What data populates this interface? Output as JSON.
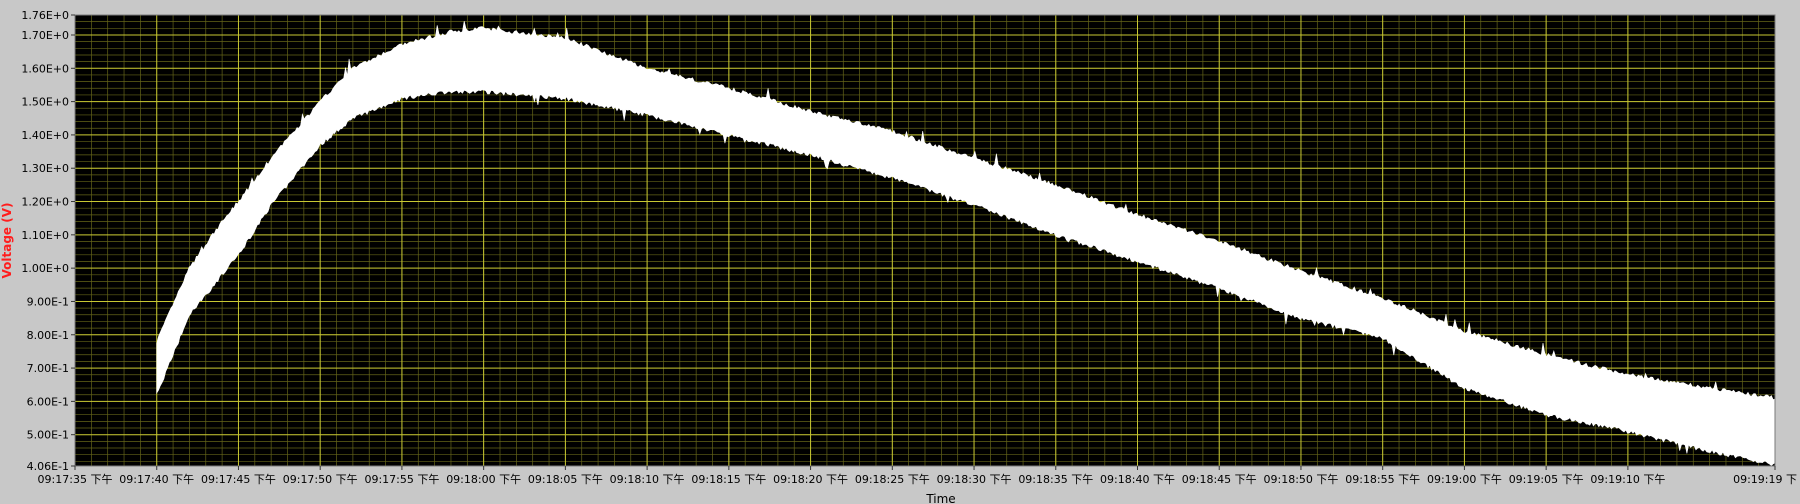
{
  "chart_data": {
    "type": "area",
    "title": "",
    "xlabel": "Time",
    "ylabel": "Voltage (V)",
    "ylabel_color": "#ff1e1e",
    "plot_bg": "#000000",
    "grid_major_color": "#c8c832",
    "grid_minor_color": "#646419",
    "trace_color": "#ffffff",
    "frame_bg": "#c8c8c8",
    "grid": true,
    "xlim": [
      "09:17:35",
      "09:19:19"
    ],
    "ylim": [
      0.406,
      1.76
    ],
    "y_ticks": [
      {
        "value": 0.406,
        "label": "4.06E-1"
      },
      {
        "value": 0.5,
        "label": "5.00E-1"
      },
      {
        "value": 0.6,
        "label": "6.00E-1"
      },
      {
        "value": 0.7,
        "label": "7.00E-1"
      },
      {
        "value": 0.8,
        "label": "8.00E-1"
      },
      {
        "value": 0.9,
        "label": "9.00E-1"
      },
      {
        "value": 1.0,
        "label": "1.00E+0"
      },
      {
        "value": 1.1,
        "label": "1.10E+0"
      },
      {
        "value": 1.2,
        "label": "1.20E+0"
      },
      {
        "value": 1.3,
        "label": "1.30E+0"
      },
      {
        "value": 1.4,
        "label": "1.40E+0"
      },
      {
        "value": 1.5,
        "label": "1.50E+0"
      },
      {
        "value": 1.6,
        "label": "1.60E+0"
      },
      {
        "value": 1.7,
        "label": "1.70E+0"
      },
      {
        "value": 1.76,
        "label": "1.76E+0"
      }
    ],
    "x_ticks": [
      {
        "value": "09:17:35",
        "label": "09:17:35 下午"
      },
      {
        "value": "09:17:40",
        "label": "09:17:40 下午"
      },
      {
        "value": "09:17:45",
        "label": "09:17:45 下午"
      },
      {
        "value": "09:17:50",
        "label": "09:17:50 下午"
      },
      {
        "value": "09:17:55",
        "label": "09:17:55 下午"
      },
      {
        "value": "09:18:00",
        "label": "09:18:00 下午"
      },
      {
        "value": "09:18:05",
        "label": "09:18:05 下午"
      },
      {
        "value": "09:18:10",
        "label": "09:18:10 下午"
      },
      {
        "value": "09:18:15",
        "label": "09:18:15 下午"
      },
      {
        "value": "09:18:20",
        "label": "09:18:20 下午"
      },
      {
        "value": "09:18:25",
        "label": "09:18:25 下午"
      },
      {
        "value": "09:18:30",
        "label": "09:18:30 下午"
      },
      {
        "value": "09:18:35",
        "label": "09:18:35 下午"
      },
      {
        "value": "09:18:40",
        "label": "09:18:40 下午"
      },
      {
        "value": "09:18:45",
        "label": "09:18:45 下午"
      },
      {
        "value": "09:18:50",
        "label": "09:18:50 下午"
      },
      {
        "value": "09:18:55",
        "label": "09:18:55 下午"
      },
      {
        "value": "09:19:00",
        "label": "09:19:00 下午"
      },
      {
        "value": "09:19:05",
        "label": "09:19:05 下午"
      },
      {
        "value": "09:19:10",
        "label": "09:19:10 下午"
      },
      {
        "value": "09:19:19",
        "label": "09:19:19 下"
      }
    ],
    "series": [
      {
        "name": "",
        "x": [
          "09:17:40",
          "09:17:42",
          "09:17:44",
          "09:17:45",
          "09:17:47",
          "09:17:50",
          "09:17:52",
          "09:17:55",
          "09:17:58",
          "09:18:00",
          "09:18:05",
          "09:18:10",
          "09:18:15",
          "09:18:20",
          "09:18:25",
          "09:18:30",
          "09:18:35",
          "09:18:40",
          "09:18:45",
          "09:18:50",
          "09:18:55",
          "09:19:00",
          "09:19:05",
          "09:19:10",
          "09:19:15",
          "09:19:19"
        ],
        "upper": [
          0.78,
          1.0,
          1.14,
          1.2,
          1.33,
          1.5,
          1.6,
          1.67,
          1.71,
          1.72,
          1.69,
          1.6,
          1.54,
          1.47,
          1.41,
          1.33,
          1.25,
          1.16,
          1.08,
          0.99,
          0.91,
          0.81,
          0.74,
          0.68,
          0.64,
          0.61
        ],
        "lower": [
          0.62,
          0.86,
          0.98,
          1.04,
          1.19,
          1.37,
          1.45,
          1.51,
          1.53,
          1.53,
          1.51,
          1.46,
          1.4,
          1.34,
          1.27,
          1.19,
          1.1,
          1.02,
          0.94,
          0.85,
          0.79,
          0.64,
          0.56,
          0.51,
          0.45,
          0.41
        ]
      }
    ]
  }
}
